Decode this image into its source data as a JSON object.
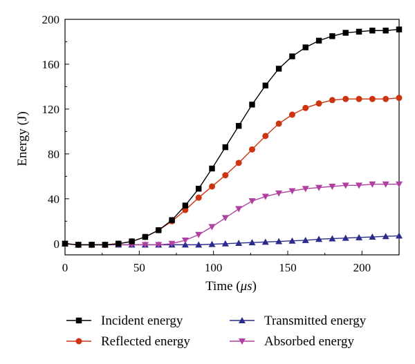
{
  "chart_data": {
    "type": "line",
    "xlabel_prefix": "Time (",
    "xlabel_unit": "μs",
    "xlabel_suffix": ")",
    "ylabel": "Energy (J)",
    "xlim": [
      0,
      225
    ],
    "ylim": [
      -10,
      200
    ],
    "xticks": [
      0,
      50,
      100,
      150,
      200
    ],
    "yticks": [
      0,
      40,
      80,
      120,
      160,
      200
    ],
    "grid": false,
    "legend_position": "bottom",
    "series": [
      {
        "name": "Incident energy",
        "color": "#000000",
        "marker": "square",
        "x": [
          0,
          9,
          18,
          27,
          36,
          45,
          54,
          63,
          72,
          81,
          90,
          99,
          108,
          117,
          126,
          135,
          144,
          153,
          162,
          171,
          180,
          189,
          198,
          207,
          216,
          225
        ],
        "y": [
          0,
          -1,
          -1,
          -1,
          0,
          2,
          6,
          12,
          21,
          34,
          49,
          67,
          86,
          105,
          124,
          141,
          156,
          167,
          175,
          181,
          185,
          188,
          189,
          190,
          190,
          191
        ]
      },
      {
        "name": "Reflected energy",
        "color": "#cc3311",
        "marker": "circle",
        "x": [
          0,
          9,
          18,
          27,
          36,
          45,
          54,
          63,
          72,
          81,
          90,
          99,
          108,
          117,
          126,
          135,
          144,
          153,
          162,
          171,
          180,
          189,
          198,
          207,
          216,
          225
        ],
        "y": [
          0,
          -1,
          -1,
          -1,
          0,
          2,
          6,
          12,
          20,
          30,
          41,
          51,
          61,
          72,
          84,
          96,
          107,
          115,
          121,
          125,
          128,
          129,
          129,
          129,
          129,
          130
        ]
      },
      {
        "name": "Transmitted energy",
        "color": "#2b2b8c",
        "marker": "triangle-up",
        "x": [
          0,
          9,
          18,
          27,
          36,
          45,
          54,
          63,
          72,
          81,
          90,
          99,
          108,
          117,
          126,
          135,
          144,
          153,
          162,
          171,
          180,
          189,
          198,
          207,
          216,
          225
        ],
        "y": [
          0,
          -1,
          -1,
          -1,
          -1,
          -1,
          -1,
          -1,
          -1,
          -1,
          -1,
          -0.5,
          0,
          0.5,
          1,
          1.5,
          2,
          2.5,
          3,
          4,
          4.5,
          5,
          5.5,
          6,
          6.5,
          7
        ]
      },
      {
        "name": "Absorbed energy",
        "color": "#b040a0",
        "marker": "triangle-down",
        "x": [
          0,
          9,
          18,
          27,
          36,
          45,
          54,
          63,
          72,
          81,
          90,
          99,
          108,
          117,
          126,
          135,
          144,
          153,
          162,
          171,
          180,
          189,
          198,
          207,
          216,
          225
        ],
        "y": [
          0,
          -1,
          -1,
          -1,
          -1,
          -1,
          -1,
          -1,
          0,
          3,
          8,
          15,
          23,
          31,
          38,
          42,
          45,
          47,
          49,
          50,
          51,
          52,
          52,
          53,
          53,
          53
        ]
      }
    ]
  }
}
